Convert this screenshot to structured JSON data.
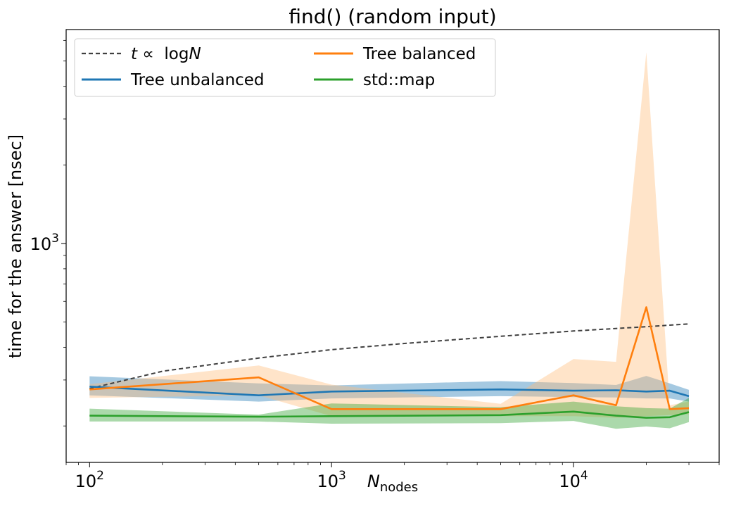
{
  "chart_data": {
    "type": "line",
    "title": "find() (random input)",
    "xlabel_main": "N",
    "xlabel_sub": "nodes",
    "ylabel": "time for the answer [nsec]",
    "xscale": "log",
    "yscale": "log",
    "xlim": [
      80,
      40000
    ],
    "ylim": [
      145,
      6600
    ],
    "x_ticks": [
      {
        "value": 100,
        "base": "10",
        "exp": "2"
      },
      {
        "value": 1000,
        "base": "10",
        "exp": "3"
      },
      {
        "value": 10000,
        "base": "10",
        "exp": "4"
      }
    ],
    "y_ticks": [
      {
        "value": 1000,
        "base": "10",
        "exp": "3"
      }
    ],
    "legend": {
      "placement": "upper-left",
      "columns": 2
    },
    "series": [
      {
        "name": "t ∝ logN",
        "legend_math": {
          "t": "t",
          "prop": " ∝  log",
          "n": "N"
        },
        "style": "dashed",
        "color": "#404040",
        "x": [
          100,
          200,
          500,
          1000,
          2000,
          5000,
          10000,
          20000,
          30000
        ],
        "y": [
          278,
          324,
          364,
          392,
          414,
          441,
          462,
          480,
          492
        ]
      },
      {
        "name": "Tree unbalanced",
        "color": "#1f77b4",
        "band_color": "#1f77b4",
        "x": [
          100,
          500,
          1000,
          5000,
          10000,
          15000,
          20000,
          25000,
          30000
        ],
        "y": [
          283,
          262,
          271,
          276,
          273,
          274,
          271,
          273,
          260
        ],
        "y_low": [
          262,
          248,
          255,
          260,
          258,
          257,
          255,
          255,
          248
        ],
        "y_high": [
          310,
          291,
          286,
          297,
          292,
          287,
          311,
          291,
          275
        ]
      },
      {
        "name": "Tree balanced",
        "color": "#ff7f0e",
        "band_color": "#ffbb78",
        "x": [
          100,
          500,
          1000,
          5000,
          10000,
          15000,
          20000,
          25000,
          30000
        ],
        "y": [
          276,
          307,
          232,
          232,
          262,
          240,
          570,
          232,
          234
        ],
        "y_low": [
          256,
          262,
          218,
          218,
          218,
          215,
          218,
          220,
          222
        ],
        "y_high": [
          289,
          341,
          288,
          243,
          361,
          352,
          5400,
          240,
          248
        ]
      },
      {
        "name": "std::map",
        "color": "#2ca02c",
        "band_color": "#2ca02c",
        "x": [
          100,
          500,
          1000,
          5000,
          10000,
          15000,
          20000,
          25000,
          30000
        ],
        "y": [
          219,
          217,
          218,
          220,
          227,
          219,
          215,
          216,
          226
        ],
        "y_low": [
          208,
          208,
          204,
          205,
          209,
          195,
          199,
          196,
          207
        ],
        "y_high": [
          233,
          221,
          244,
          236,
          248,
          238,
          234,
          233,
          256
        ]
      }
    ]
  }
}
